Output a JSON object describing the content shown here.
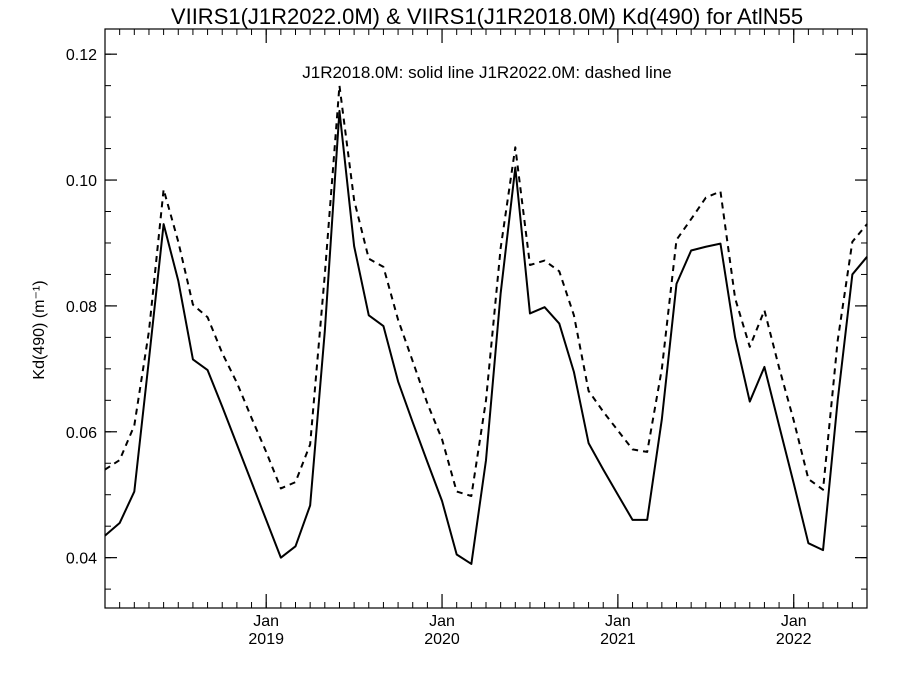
{
  "chart_data": {
    "type": "line",
    "title": "VIIRS1(J1R2022.0M) & VIIRS1(J1R2018.0M)  Kd(490) for AtlN55",
    "annotation": "J1R2018.0M: solid line   J1R2022.0M: dashed line",
    "ylabel": "Kd(490) (m⁻¹)",
    "xlabel": "",
    "ylim": [
      0.032,
      0.124
    ],
    "xlim": [
      "2018-02",
      "2022-06"
    ],
    "y_ticks": [
      "0.04",
      "0.06",
      "0.08",
      "0.10",
      "0.12"
    ],
    "x_ticks": [
      {
        "month": "Jan",
        "year": "2019",
        "at": "2019-01"
      },
      {
        "month": "Jan",
        "year": "2020",
        "at": "2020-01"
      },
      {
        "month": "Jan",
        "year": "2021",
        "at": "2021-01"
      },
      {
        "month": "Jan",
        "year": "2022",
        "at": "2022-01"
      }
    ],
    "grid": false,
    "months": [
      "2018-02",
      "2018-03",
      "2018-04",
      "2018-05",
      "2018-06",
      "2018-07",
      "2018-08",
      "2018-09",
      "2018-10",
      "2018-11",
      "2018-12",
      "2019-01",
      "2019-02",
      "2019-03",
      "2019-04",
      "2019-05",
      "2019-06",
      "2019-07",
      "2019-08",
      "2019-09",
      "2019-10",
      "2019-11",
      "2019-12",
      "2020-01",
      "2020-02",
      "2020-03",
      "2020-04",
      "2020-05",
      "2020-06",
      "2020-07",
      "2020-08",
      "2020-09",
      "2020-10",
      "2020-11",
      "2020-12",
      "2021-01",
      "2021-02",
      "2021-03",
      "2021-04",
      "2021-05",
      "2021-06",
      "2021-07",
      "2021-08",
      "2021-09",
      "2021-10",
      "2021-11",
      "2021-12",
      "2022-01",
      "2022-02",
      "2022-03",
      "2022-04",
      "2022-05",
      "2022-06"
    ],
    "series": [
      {
        "name": "J1R2018.0M",
        "style": "solid",
        "values": [
          0.0435,
          0.0455,
          0.0505,
          0.0715,
          0.093,
          0.084,
          0.0715,
          0.0698,
          0.064,
          0.058,
          0.052,
          0.046,
          0.04,
          0.0418,
          0.0483,
          0.076,
          0.111,
          0.0895,
          0.0785,
          0.0768,
          0.068,
          0.0615,
          0.0552,
          0.049,
          0.0405,
          0.039,
          0.0555,
          0.082,
          0.102,
          0.0788,
          0.0798,
          0.0772,
          0.0695,
          0.0582,
          0.054,
          0.05,
          0.046,
          0.046,
          0.062,
          0.0835,
          0.0888,
          0.0894,
          0.0899,
          0.075,
          0.0648,
          0.0703,
          0.061,
          0.0518,
          0.0423,
          0.0412,
          0.065,
          0.085,
          0.0878
        ]
      },
      {
        "name": "J1R2022.0M",
        "style": "dashed",
        "values": [
          0.054,
          0.0555,
          0.061,
          0.076,
          0.0985,
          0.0902,
          0.0802,
          0.0782,
          0.0725,
          0.0678,
          0.0622,
          0.0568,
          0.051,
          0.052,
          0.058,
          0.085,
          0.115,
          0.0968,
          0.0875,
          0.0862,
          0.0778,
          0.0712,
          0.0645,
          0.0588,
          0.0505,
          0.0498,
          0.065,
          0.0892,
          0.1052,
          0.0865,
          0.0872,
          0.0855,
          0.0785,
          0.0665,
          0.0632,
          0.0602,
          0.0572,
          0.0568,
          0.07,
          0.0905,
          0.0938,
          0.0972,
          0.0982,
          0.0812,
          0.0735,
          0.0793,
          0.0702,
          0.0618,
          0.0525,
          0.0508,
          0.0745,
          0.0902,
          0.093
        ]
      }
    ]
  }
}
